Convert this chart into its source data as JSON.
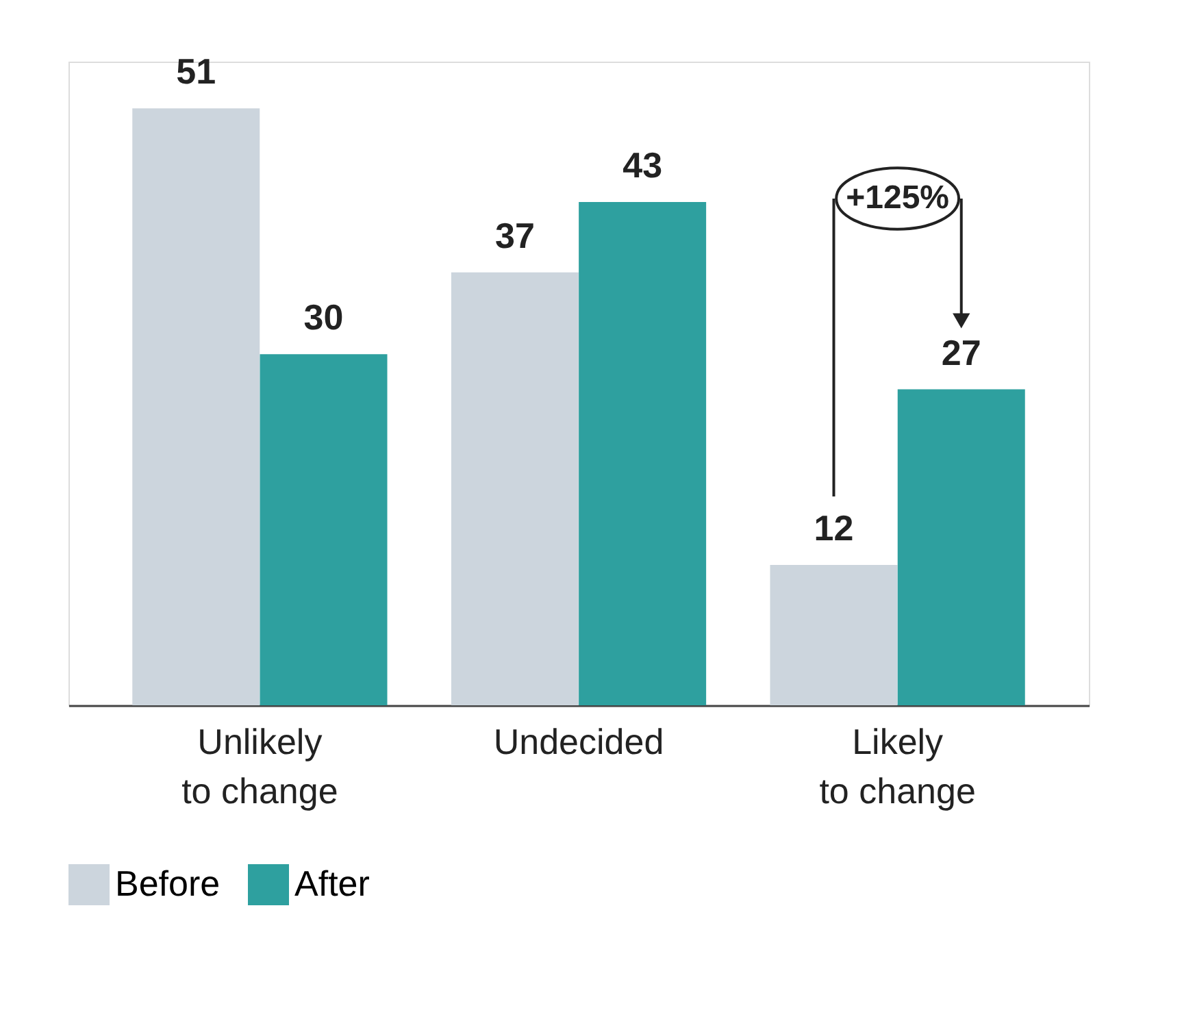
{
  "chart_data": {
    "type": "bar",
    "categories": [
      "Unlikely to change",
      "Undecided",
      "Likely to change"
    ],
    "series": [
      {
        "name": "Before",
        "color": "#ccd5dd",
        "values": [
          51,
          37,
          12
        ]
      },
      {
        "name": "After",
        "color": "#2ea09f",
        "values": [
          30,
          43,
          27
        ]
      }
    ],
    "data_labels": true,
    "annotations": [
      "+125%"
    ],
    "legend": "bottom",
    "grid": false
  }
}
